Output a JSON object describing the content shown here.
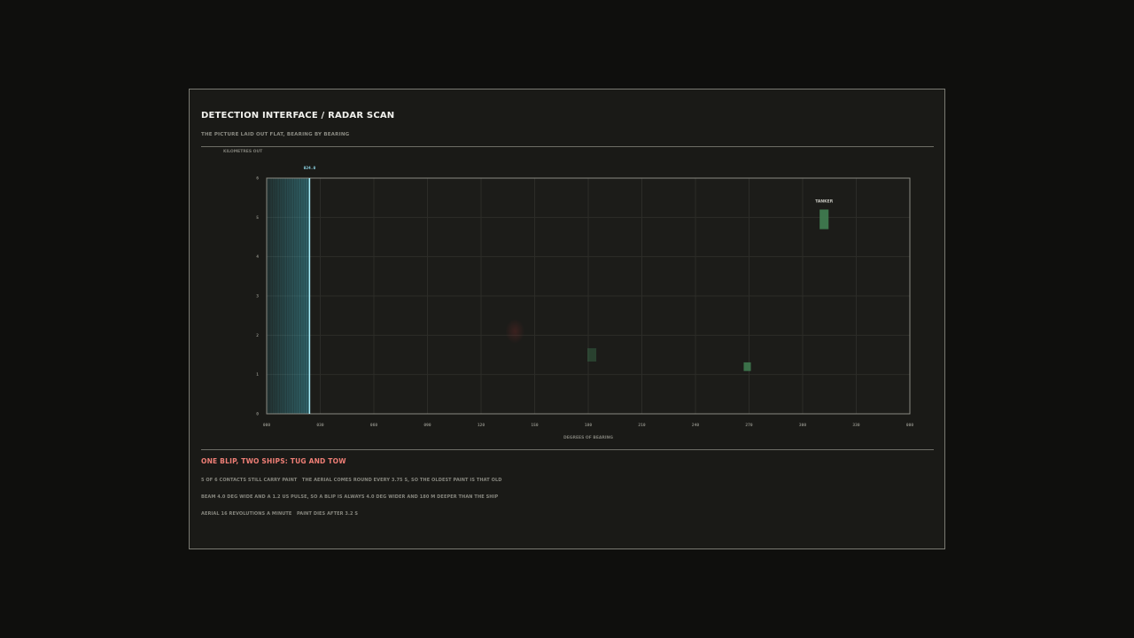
{
  "header": {
    "title": "DETECTION INTERFACE / RADAR SCAN",
    "subtitle": "THE PICTURE LAID OUT FLAT, BEARING BY BEARING"
  },
  "chart_data": {
    "type": "scatter",
    "xlabel": "DEGREES OF BEARING",
    "ylabel": "KILOMETRES OUT",
    "xlim": [
      0,
      360
    ],
    "ylim": [
      0,
      6
    ],
    "x_ticks": [
      "000",
      "030",
      "060",
      "090",
      "120",
      "150",
      "180",
      "210",
      "240",
      "270",
      "300",
      "330",
      "000"
    ],
    "y_ticks": [
      "0",
      "1",
      "2",
      "3",
      "4",
      "5",
      "6"
    ],
    "grid": true,
    "sweep": {
      "bearing": 24.0,
      "label": "024.0",
      "trail_start": 0,
      "color": "#7fd4e6"
    },
    "contacts": [
      {
        "bearing": 312,
        "range": 4.95,
        "width_deg": 5,
        "depth_km": 0.5,
        "label": "TANKER",
        "color": "#3f7a4f",
        "opacity": 0.95
      },
      {
        "bearing": 269,
        "range": 1.2,
        "width_deg": 4,
        "depth_km": 0.22,
        "label": "",
        "color": "#3f7a4f",
        "opacity": 0.9
      },
      {
        "bearing": 182,
        "range": 1.5,
        "width_deg": 5,
        "depth_km": 0.34,
        "label": "",
        "color": "#3f7a4f",
        "opacity": 0.4
      },
      {
        "bearing": 139,
        "range": 2.1,
        "width_deg": 6,
        "depth_km": 0.35,
        "label": "",
        "color": "#7a2b2b",
        "opacity": 0.25
      }
    ]
  },
  "footer": {
    "heading": "ONE BLIP, TWO SHIPS: TUG AND TOW",
    "line1": "5 OF 6 CONTACTS STILL CARRY PAINT   THE AERIAL COMES ROUND EVERY 3.75 S, SO THE OLDEST PAINT IS THAT OLD",
    "line2": "BEAM 4.0 DEG WIDE AND A 1.2 US PULSE, SO A BLIP IS ALWAYS 4.0 DEG WIDER AND 180 M DEEPER THAN THE SHIP",
    "line3": "AERIAL 16 REVOLUTIONS A MINUTE   PAINT DIES AFTER 3.2 S"
  }
}
